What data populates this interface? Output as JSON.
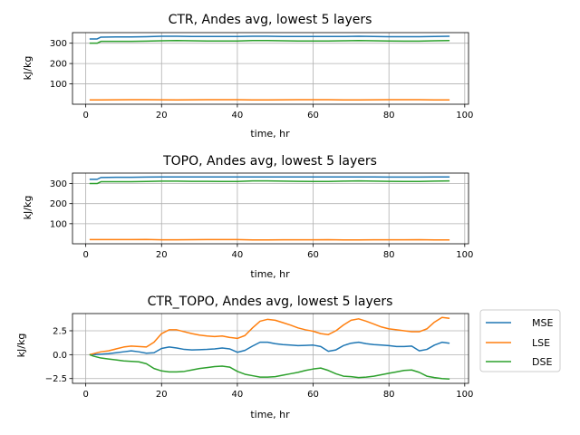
{
  "colors": {
    "MSE": "#1f77b4",
    "LSE": "#ff7f0e",
    "DSE": "#2ca02c"
  },
  "legend": {
    "placement": "right of bottom panel",
    "labels": [
      "MSE",
      "LSE",
      "DSE"
    ]
  },
  "chart_data": [
    {
      "type": "line",
      "title": "CTR, Andes avg, lowest 5 layers",
      "xlabel": "time, hr",
      "ylabel": "kJ/kg",
      "xlim": [
        -3.5,
        101
      ],
      "ylim": [
        0,
        352
      ],
      "xticks": [
        0,
        20,
        40,
        60,
        80,
        100
      ],
      "yticks": [
        100,
        200,
        300
      ],
      "grid": true,
      "x": [
        1,
        3,
        4,
        8,
        12,
        16,
        20,
        24,
        28,
        32,
        36,
        40,
        44,
        48,
        52,
        56,
        60,
        64,
        68,
        72,
        76,
        80,
        84,
        88,
        92,
        96
      ],
      "series": [
        {
          "name": "MSE",
          "values": [
            321,
            321,
            330,
            331,
            331,
            332,
            334,
            334,
            333,
            333,
            333,
            333,
            334,
            334,
            333,
            333,
            333,
            333,
            333,
            334,
            333,
            332,
            332,
            332,
            333,
            334
          ]
        },
        {
          "name": "LSE",
          "values": [
            21,
            21,
            21,
            21.5,
            22,
            22.5,
            21.5,
            21,
            21.5,
            22,
            22,
            22,
            21,
            21,
            21.5,
            22,
            22,
            22,
            21,
            21,
            21.5,
            22,
            22,
            22.5,
            21,
            21
          ]
        },
        {
          "name": "DSE",
          "values": [
            300,
            300,
            309,
            309,
            309,
            310,
            312,
            313,
            312,
            311,
            311,
            311,
            313,
            313,
            312,
            311,
            311,
            311,
            312,
            313,
            312,
            311,
            310,
            310,
            312,
            313
          ]
        }
      ]
    },
    {
      "type": "line",
      "title": "TOPO, Andes avg, lowest 5 layers",
      "xlabel": "time, hr",
      "ylabel": "kJ/kg",
      "xlim": [
        -3.5,
        101
      ],
      "ylim": [
        0,
        352
      ],
      "xticks": [
        0,
        20,
        40,
        60,
        80,
        100
      ],
      "yticks": [
        100,
        200,
        300
      ],
      "grid": true,
      "x": [
        1,
        3,
        4,
        8,
        12,
        16,
        20,
        24,
        28,
        32,
        36,
        40,
        44,
        48,
        52,
        56,
        60,
        64,
        68,
        72,
        76,
        80,
        84,
        88,
        92,
        96
      ],
      "series": [
        {
          "name": "MSE",
          "values": [
            321,
            321,
            330,
            331,
            331,
            332,
            333,
            333,
            333,
            333,
            333,
            333,
            333,
            333,
            333,
            333,
            333,
            333,
            333,
            333,
            333,
            332,
            332,
            332,
            333,
            333
          ]
        },
        {
          "name": "LSE",
          "values": [
            21,
            21,
            21,
            21,
            21,
            21.5,
            20,
            20,
            20.5,
            21,
            21,
            21,
            19,
            19,
            19.5,
            20,
            20,
            20.5,
            19,
            19,
            19.5,
            20,
            20,
            20.5,
            19,
            19
          ]
        },
        {
          "name": "DSE",
          "values": [
            300,
            300,
            309,
            309,
            309,
            310,
            312,
            312,
            311,
            311,
            310,
            310,
            313,
            313,
            312,
            311,
            310,
            310,
            312,
            313,
            312,
            311,
            310,
            310,
            312,
            313
          ]
        }
      ]
    },
    {
      "type": "line",
      "title": "CTR_TOPO, Andes avg, lowest 5 layers",
      "xlabel": "time, hr",
      "ylabel": "kJ/kg",
      "xlim": [
        -3.5,
        101
      ],
      "ylim": [
        -3,
        4.3
      ],
      "xticks": [
        0,
        20,
        40,
        60,
        80,
        100
      ],
      "yticks": [
        -2.5,
        0.0,
        2.5
      ],
      "ytick_labels": [
        "−2.5",
        "0.0",
        "2.5"
      ],
      "grid": true,
      "x": [
        1,
        2,
        4,
        6,
        8,
        10,
        12,
        14,
        16,
        18,
        20,
        22,
        24,
        26,
        28,
        30,
        32,
        34,
        36,
        38,
        40,
        42,
        44,
        46,
        48,
        50,
        52,
        54,
        56,
        58,
        60,
        62,
        64,
        66,
        68,
        70,
        72,
        74,
        76,
        78,
        80,
        82,
        84,
        86,
        88,
        90,
        92,
        94,
        96
      ],
      "series": [
        {
          "name": "MSE",
          "values": [
            0,
            0.0,
            0.05,
            0.1,
            0.2,
            0.3,
            0.4,
            0.3,
            0.15,
            0.2,
            0.65,
            0.8,
            0.7,
            0.55,
            0.5,
            0.52,
            0.55,
            0.6,
            0.7,
            0.6,
            0.25,
            0.45,
            0.9,
            1.3,
            1.3,
            1.15,
            1.05,
            1.0,
            0.95,
            0.97,
            1.0,
            0.85,
            0.35,
            0.5,
            0.95,
            1.2,
            1.3,
            1.15,
            1.05,
            1.0,
            0.95,
            0.85,
            0.85,
            0.9,
            0.4,
            0.55,
            1.0,
            1.3,
            1.2
          ]
        },
        {
          "name": "LSE",
          "values": [
            0,
            0.1,
            0.3,
            0.4,
            0.6,
            0.8,
            0.9,
            0.85,
            0.8,
            1.3,
            2.2,
            2.6,
            2.6,
            2.4,
            2.2,
            2.05,
            1.95,
            1.9,
            1.95,
            1.8,
            1.7,
            2.0,
            2.8,
            3.5,
            3.7,
            3.6,
            3.35,
            3.1,
            2.8,
            2.6,
            2.45,
            2.2,
            2.1,
            2.5,
            3.1,
            3.6,
            3.75,
            3.5,
            3.2,
            2.9,
            2.7,
            2.6,
            2.5,
            2.4,
            2.4,
            2.7,
            3.4,
            3.9,
            3.8
          ]
        },
        {
          "name": "DSE",
          "values": [
            0,
            -0.15,
            -0.35,
            -0.45,
            -0.55,
            -0.65,
            -0.7,
            -0.75,
            -0.95,
            -1.45,
            -1.7,
            -1.8,
            -1.8,
            -1.75,
            -1.6,
            -1.45,
            -1.35,
            -1.25,
            -1.2,
            -1.3,
            -1.75,
            -2.05,
            -2.2,
            -2.35,
            -2.35,
            -2.3,
            -2.15,
            -2.0,
            -1.85,
            -1.65,
            -1.5,
            -1.4,
            -1.65,
            -2.0,
            -2.25,
            -2.3,
            -2.4,
            -2.35,
            -2.25,
            -2.1,
            -1.95,
            -1.8,
            -1.65,
            -1.6,
            -1.85,
            -2.25,
            -2.4,
            -2.5,
            -2.55
          ]
        }
      ]
    }
  ]
}
